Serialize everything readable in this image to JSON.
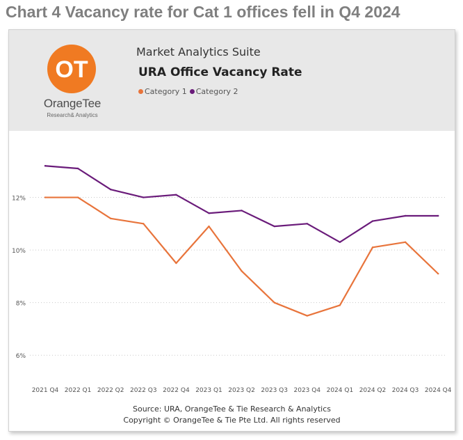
{
  "page": {
    "title": "Chart 4 Vacancy rate for Cat 1 offices fell in Q4 2024"
  },
  "branding": {
    "logo_icon": "orangetee-logo-icon",
    "logo_text": "OT",
    "name": "OrangeTee",
    "subtitle": "Research& Analytics",
    "accent_color": "#f07a22"
  },
  "header": {
    "suite_title": "Market Analytics Suite",
    "chart_title": "URA Office Vacancy Rate"
  },
  "footer": {
    "source": "Source: URA, OrangeTee & Tie Research & Analytics",
    "copyright": "Copyright © OrangeTee & Tie Pte Ltd. All rights reserved"
  },
  "chart_data": {
    "type": "line",
    "title": "URA Office Vacancy Rate",
    "xlabel": "",
    "ylabel": "",
    "categories": [
      "2021 Q4",
      "2022 Q1",
      "2022 Q2",
      "2022 Q3",
      "2022 Q4",
      "2023 Q1",
      "2023 Q2",
      "2023 Q3",
      "2023 Q4",
      "2024 Q1",
      "2024 Q2",
      "2024 Q3",
      "2024 Q4"
    ],
    "series": [
      {
        "name": "Category 1",
        "color": "#e8743b",
        "values": [
          12.0,
          12.0,
          11.2,
          11.0,
          9.5,
          10.9,
          9.2,
          8.0,
          7.5,
          7.9,
          10.1,
          10.3,
          9.1
        ]
      },
      {
        "name": "Category 2",
        "color": "#6a1b7a",
        "values": [
          13.2,
          13.1,
          12.3,
          12.0,
          12.1,
          11.4,
          11.5,
          10.9,
          11.0,
          10.3,
          11.1,
          11.3,
          11.3
        ]
      }
    ],
    "yticks": [
      6,
      8,
      10,
      12
    ],
    "ytick_labels": [
      "6%",
      "8%",
      "10%",
      "12%"
    ],
    "ylim": [
      5.0,
      14.0
    ],
    "grid": true,
    "legend_position": "top-left"
  }
}
